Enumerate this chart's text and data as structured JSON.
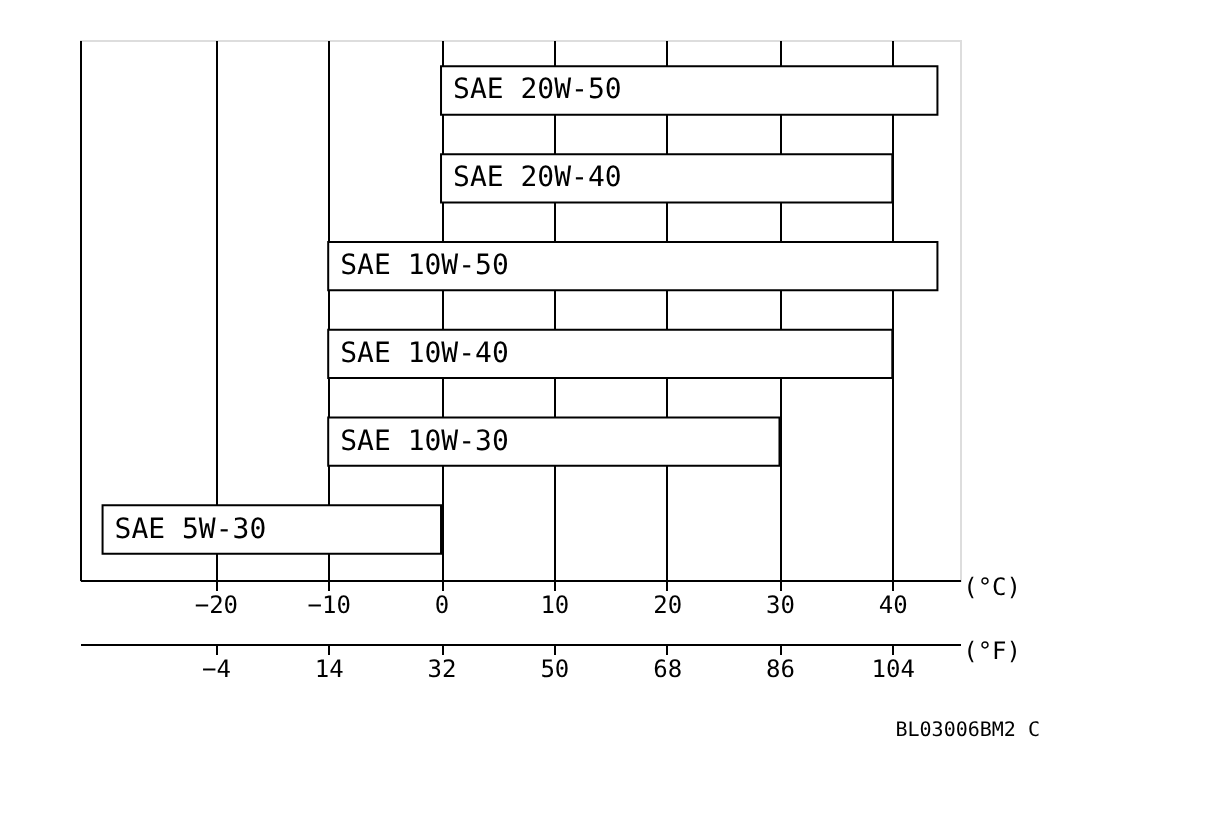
{
  "chart_data": {
    "type": "bar",
    "orientation": "horizontal",
    "categories": [
      "SAE 20W-50",
      "SAE 20W-40",
      "SAE 10W-50",
      "SAE 10W-40",
      "SAE 10W-30",
      "SAE 5W-30"
    ],
    "base": [
      0,
      0,
      -10,
      -10,
      -10,
      -30
    ],
    "values": [
      44,
      40,
      54,
      50,
      40,
      30
    ],
    "color": "#ffffff",
    "xlabel": "(°C)",
    "x2label": "(°F)",
    "xlim": [
      -32,
      46
    ],
    "xticks": [
      -20,
      -10,
      0,
      10,
      20,
      30,
      40
    ],
    "x2lim": [
      -25.6,
      114.8
    ],
    "x2ticks": [
      -4,
      14,
      32,
      50,
      68,
      86,
      104
    ],
    "grid": "x",
    "tick_labels": "x",
    "annotations": [
      "BL03006BM2 C"
    ]
  }
}
